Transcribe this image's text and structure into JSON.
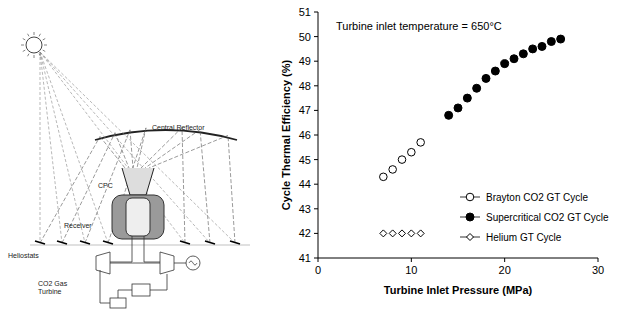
{
  "chart_data": {
    "type": "scatter",
    "annotation": "Turbine inlet temperature = 650°C",
    "x_label": "Turbine Inlet Pressure (MPa)",
    "y_label": "Cycle Thermal Efficiency (%)",
    "xlim": [
      0,
      30
    ],
    "xticks": [
      0,
      10,
      20,
      30
    ],
    "ylim": [
      41,
      51
    ],
    "yticks": [
      41,
      42,
      43,
      44,
      45,
      46,
      47,
      48,
      49,
      50,
      51
    ],
    "grid": false,
    "legend": "lower right",
    "series": [
      {
        "name": "Brayton CO2 GT Cycle",
        "color": "#000000",
        "marker": "open_circle",
        "x": [
          7,
          8,
          9,
          10,
          11
        ],
        "values": [
          44.3,
          44.6,
          45.0,
          45.3,
          45.7
        ]
      },
      {
        "name": "Supercritical CO2 GT Cycle",
        "color": "#000000",
        "marker": "filled_circle",
        "x": [
          14,
          15,
          16,
          17,
          18,
          19,
          20,
          21,
          22,
          23,
          24,
          25,
          26
        ],
        "values": [
          46.8,
          47.1,
          47.5,
          47.9,
          48.3,
          48.6,
          48.9,
          49.1,
          49.3,
          49.5,
          49.6,
          49.8,
          49.9
        ]
      },
      {
        "name": "Helium GT Cycle",
        "color": "#000000",
        "marker": "open_diamond",
        "x": [
          7,
          8,
          9,
          10,
          11
        ],
        "values": [
          42,
          42,
          42,
          42,
          42
        ]
      }
    ]
  },
  "diagram": {
    "labels": [
      "Central Reflector",
      "CPC",
      "Receiver",
      "Heliostats",
      "CO2 Gas",
      "Turbine"
    ]
  }
}
